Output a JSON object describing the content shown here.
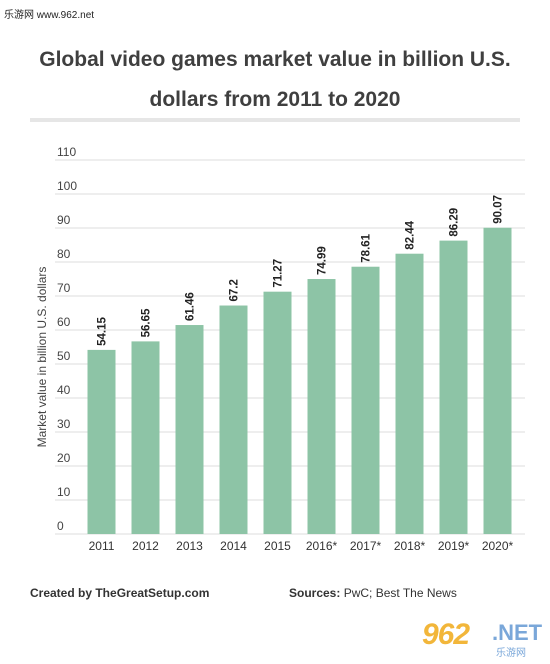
{
  "site": {
    "label": "乐游网 www.962.net"
  },
  "chart_data": {
    "type": "bar",
    "title_line1": "Global video games market value in billion U.S.",
    "title_line2": "dollars from 2011 to 2020",
    "xlabel": "",
    "ylabel": "Market value in billion U.S. dollars",
    "ylim": [
      0,
      110
    ],
    "yticks": [
      0,
      10,
      20,
      30,
      40,
      50,
      60,
      70,
      80,
      90,
      100,
      110
    ],
    "grid": true,
    "categories": [
      "2011",
      "2012",
      "2013",
      "2014",
      "2015",
      "2016*",
      "2017*",
      "2018*",
      "2019*",
      "2020*"
    ],
    "values": [
      54.15,
      56.65,
      61.46,
      67.2,
      71.27,
      74.99,
      78.61,
      82.44,
      86.29,
      90.07
    ],
    "value_labels": [
      "54.15",
      "56.65",
      "61.46",
      "67.2",
      "71.27",
      "74.99",
      "78.61",
      "82.44",
      "86.29",
      "90.07"
    ],
    "bar_color": "#8dc4a6",
    "grid_color": "#dcdcdc"
  },
  "footer": {
    "created_by": "Created by TheGreatSetup.com",
    "sources_key": "Sources:",
    "sources_value": " PwC; Best The News"
  },
  "watermark": {
    "num": "962",
    "net": ".NET",
    "cn": "乐游网"
  }
}
